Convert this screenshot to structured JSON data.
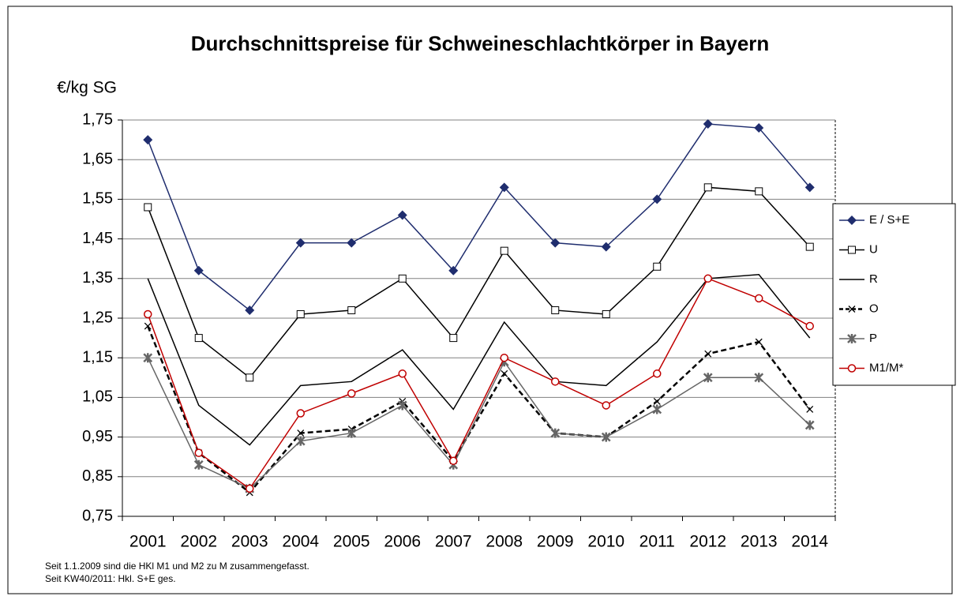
{
  "chart_data": {
    "type": "line",
    "title": "Durchschnittspreise für Schweineschlachtkörper in Bayern",
    "y_label": "€/kg SG",
    "notes": [
      "Seit 1.1.2009 sind die HKl M1 und  M2 zu  M zusammengefasst.",
      "Seit KW40/2011:  Hkl. S+E ges."
    ],
    "categories": [
      "2001",
      "2002",
      "2003",
      "2004",
      "2005",
      "2006",
      "2007",
      "2008",
      "2009",
      "2010",
      "2011",
      "2012",
      "2013",
      "2014"
    ],
    "ylim": [
      0.75,
      1.75
    ],
    "yticks": [
      {
        "value": 0.75,
        "label": "0,75"
      },
      {
        "value": 0.85,
        "label": "0,85"
      },
      {
        "value": 0.95,
        "label": "0,95"
      },
      {
        "value": 1.05,
        "label": "1,05"
      },
      {
        "value": 1.15,
        "label": "1,15"
      },
      {
        "value": 1.25,
        "label": "1,25"
      },
      {
        "value": 1.35,
        "label": "1,35"
      },
      {
        "value": 1.45,
        "label": "1,45"
      },
      {
        "value": 1.55,
        "label": "1,55"
      },
      {
        "value": 1.65,
        "label": "1,65"
      },
      {
        "value": 1.75,
        "label": "1,75"
      }
    ],
    "grid": true,
    "legend": "right",
    "series": [
      {
        "name": "E / S+E",
        "color": "#1f2d6e",
        "marker": "diamond",
        "dash": false,
        "values": [
          1.7,
          1.37,
          1.27,
          1.44,
          1.44,
          1.51,
          1.37,
          1.58,
          1.44,
          1.43,
          1.55,
          1.74,
          1.73,
          1.58
        ]
      },
      {
        "name": "U",
        "color": "#000000",
        "marker": "square",
        "dash": false,
        "values": [
          1.53,
          1.2,
          1.1,
          1.26,
          1.27,
          1.35,
          1.2,
          1.42,
          1.27,
          1.26,
          1.38,
          1.58,
          1.57,
          1.43
        ]
      },
      {
        "name": "R",
        "color": "#000000",
        "marker": "none",
        "dash": false,
        "values": [
          1.35,
          1.03,
          0.93,
          1.08,
          1.09,
          1.17,
          1.02,
          1.24,
          1.09,
          1.08,
          1.19,
          1.35,
          1.36,
          1.2
        ]
      },
      {
        "name": "O",
        "color": "#000000",
        "marker": "x",
        "dash": true,
        "values": [
          1.23,
          0.91,
          0.81,
          0.96,
          0.97,
          1.04,
          0.89,
          1.11,
          0.96,
          0.95,
          1.04,
          1.16,
          1.19,
          1.02
        ]
      },
      {
        "name": "P",
        "color": "#666666",
        "marker": "star",
        "dash": false,
        "values": [
          1.15,
          0.88,
          0.82,
          0.94,
          0.96,
          1.03,
          0.88,
          1.14,
          0.96,
          0.95,
          1.02,
          1.1,
          1.1,
          0.98
        ]
      },
      {
        "name": "M1/M*",
        "color": "#c00000",
        "marker": "circle",
        "dash": false,
        "values": [
          1.26,
          0.91,
          0.82,
          1.01,
          1.06,
          1.11,
          0.89,
          1.15,
          1.09,
          1.03,
          1.11,
          1.35,
          1.3,
          1.23
        ]
      }
    ]
  }
}
